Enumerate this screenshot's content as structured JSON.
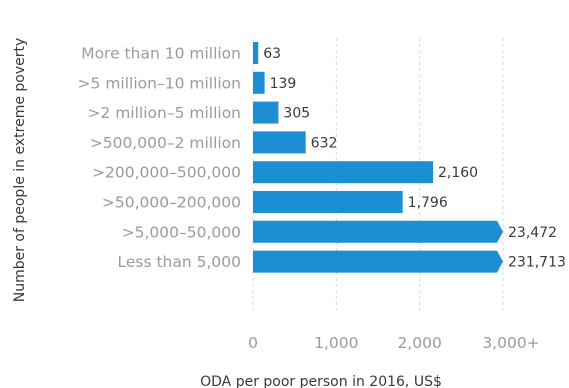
{
  "chart_data": {
    "type": "bar",
    "orientation": "horizontal",
    "categories": [
      "More than 10 million",
      ">5 million–10 million",
      ">2 million–5 million",
      ">500,000–2 million",
      ">200,000–500,000",
      ">50,000–200,000",
      ">5,000–50,000",
      "Less than 5,000"
    ],
    "values": [
      63,
      139,
      305,
      632,
      2160,
      1796,
      23472,
      231713
    ],
    "value_labels": [
      "63",
      "139",
      "305",
      "632",
      "2,160",
      "1,796",
      "23,472",
      "231,713"
    ],
    "truncated_at": 3000,
    "xlim": [
      0,
      3000
    ],
    "xticks": [
      0,
      1000,
      2000,
      3000
    ],
    "xtick_labels": [
      "0",
      "1,000",
      "2,000",
      "3,000+"
    ],
    "xlabel": "ODA per poor person in 2016, US$",
    "ylabel": "Number of people in extreme poverty",
    "grid": true,
    "bar_color": "#1b8fd2",
    "grid_color": "#d9d9d9"
  }
}
